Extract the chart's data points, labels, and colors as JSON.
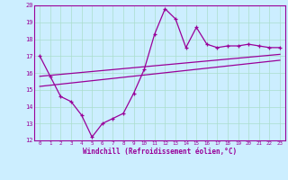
{
  "xlabel": "Windchill (Refroidissement éolien,°C)",
  "bg_color": "#cceeff",
  "line_color": "#990099",
  "grid_color": "#aaddcc",
  "xlim": [
    -0.5,
    23.5
  ],
  "ylim": [
    12,
    20
  ],
  "xticks": [
    0,
    1,
    2,
    3,
    4,
    5,
    6,
    7,
    8,
    9,
    10,
    11,
    12,
    13,
    14,
    15,
    16,
    17,
    18,
    19,
    20,
    21,
    22,
    23
  ],
  "yticks": [
    12,
    13,
    14,
    15,
    16,
    17,
    18,
    19,
    20
  ],
  "curve1_x": [
    0,
    1,
    2,
    3,
    4,
    5,
    6,
    7,
    8,
    9,
    10,
    11,
    12,
    13,
    14,
    15,
    16,
    17,
    18,
    19,
    20,
    21,
    22,
    23
  ],
  "curve1_y": [
    17.0,
    15.8,
    14.6,
    14.3,
    13.5,
    12.2,
    13.0,
    13.3,
    13.6,
    14.8,
    16.2,
    18.3,
    19.8,
    19.2,
    17.5,
    18.7,
    17.7,
    17.5,
    17.6,
    17.6,
    17.7,
    17.6,
    17.5,
    17.5
  ],
  "line1_x": [
    0,
    23
  ],
  "line1_y": [
    15.8,
    17.1
  ],
  "line2_x": [
    0,
    23
  ],
  "line2_y": [
    15.2,
    16.75
  ]
}
